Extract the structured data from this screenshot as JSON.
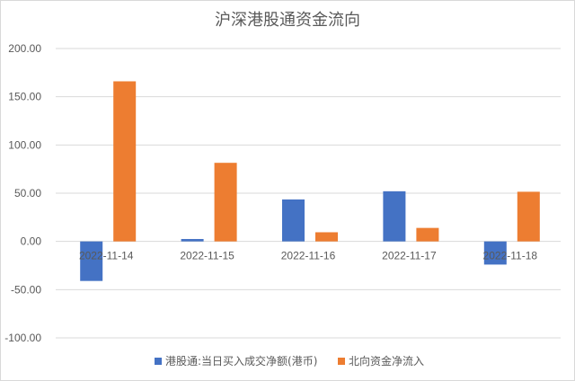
{
  "chart_data": {
    "type": "bar",
    "title": "沪深港股通资金流向",
    "categories": [
      "2022-11-14",
      "2022-11-15",
      "2022-11-16",
      "2022-11-17",
      "2022-11-18"
    ],
    "series": [
      {
        "name": "港股通:当日买入成交净额(港币)",
        "color": "#4472C4",
        "values": [
          -41.0,
          2.5,
          43.5,
          52.0,
          -24.0
        ]
      },
      {
        "name": "北向资金净流入",
        "color": "#ED7D31",
        "values": [
          166.0,
          81.5,
          9.5,
          14.0,
          51.5
        ]
      }
    ],
    "ylim": [
      -100,
      200
    ],
    "yticks": [
      "200.00",
      "150.00",
      "100.00",
      "50.00",
      "0.00",
      "-50.00",
      "-100.00"
    ],
    "ytick_values": [
      200,
      150,
      100,
      50,
      0,
      -50,
      -100
    ],
    "grid": true,
    "legend": "bottom",
    "gridline_color": "#d9d9d9"
  }
}
